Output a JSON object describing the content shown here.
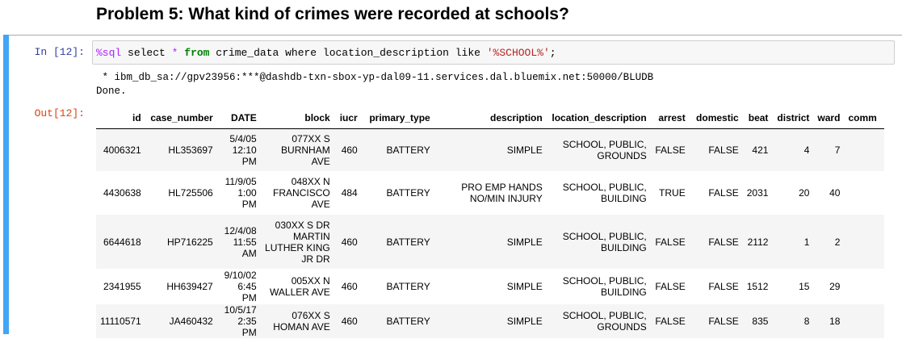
{
  "heading": "Problem 5: What kind of crimes were recorded at schools?",
  "cell": {
    "in_prompt": "In [12]:",
    "out_prompt": "Out[12]:",
    "code": {
      "magic": "%sql",
      "part1": " select ",
      "star": "*",
      "part2": " ",
      "from_kw": "from",
      "part3": " crime_data where location_description like ",
      "string": "'%SCHOOL%'",
      "part4": ";"
    },
    "stdout": [
      " * ibm_db_sa://gpv23956:***@dashdb-txn-sbox-yp-dal09-11.services.dal.bluemix.net:50000/BLUDB",
      "Done."
    ]
  },
  "table": {
    "columns": [
      "id",
      "case_number",
      "DATE",
      "block",
      "iucr",
      "primary_type",
      "description",
      "location_description",
      "arrest",
      "domestic",
      "beat",
      "district",
      "ward",
      "comm"
    ],
    "rows": [
      [
        "4006321",
        "HL353697",
        "5/4/05 12:10 PM",
        "077XX S BURNHAM AVE",
        "460",
        "BATTERY",
        "SIMPLE",
        "SCHOOL, PUBLIC, GROUNDS",
        "FALSE",
        "FALSE",
        "421",
        "4",
        "7",
        ""
      ],
      [
        "4430638",
        "HL725506",
        "11/9/05 1:00 PM",
        "048XX N FRANCISCO AVE",
        "484",
        "BATTERY",
        "PRO EMP HANDS NO/MIN INJURY",
        "SCHOOL, PUBLIC, BUILDING",
        "TRUE",
        "FALSE",
        "2031",
        "20",
        "40",
        ""
      ],
      [
        "6644618",
        "HP716225",
        "12/4/08 11:55 AM",
        "030XX S DR MARTIN LUTHER KING JR DR",
        "460",
        "BATTERY",
        "SIMPLE",
        "SCHOOL, PUBLIC, BUILDING",
        "FALSE",
        "FALSE",
        "2112",
        "1",
        "2",
        ""
      ],
      [
        "2341955",
        "HH639427",
        "9/10/02 6:45 PM",
        "005XX N WALLER AVE",
        "460",
        "BATTERY",
        "SIMPLE",
        "SCHOOL, PUBLIC, BUILDING",
        "FALSE",
        "FALSE",
        "1512",
        "15",
        "29",
        ""
      ],
      [
        "11110571",
        "JA460432",
        "10/5/17 2:35 PM",
        "076XX S HOMAN AVE",
        "460",
        "BATTERY",
        "SIMPLE",
        "SCHOOL, PUBLIC, GROUNDS",
        "FALSE",
        "FALSE",
        "835",
        "8",
        "18",
        ""
      ]
    ]
  }
}
